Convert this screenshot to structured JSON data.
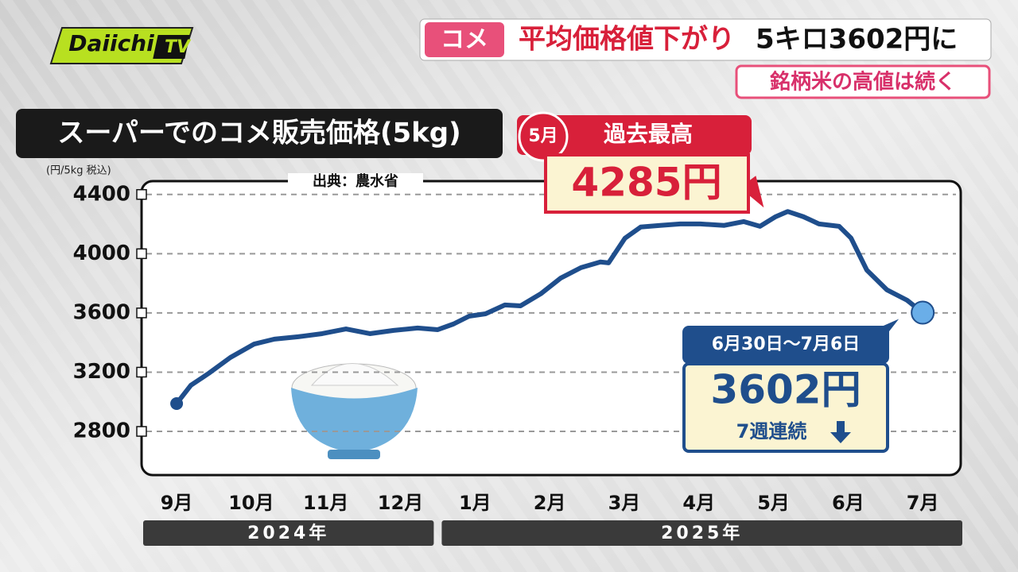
{
  "logo": {
    "name": "Daiichi",
    "suffix": "TV"
  },
  "headline": {
    "tag": "コメ",
    "main": "平均価格値下がり",
    "detail": "5キロ3602円に",
    "sub": "銘柄米の高値は続く"
  },
  "chart_data": {
    "type": "line",
    "title": "スーパーでのコメ販売価格(5kg)",
    "y_unit": "(円/5kg 税込)",
    "source": "出典：農水省",
    "x": [
      0,
      0.19,
      0.43,
      0.72,
      1.04,
      1.31,
      1.63,
      1.95,
      2.27,
      2.59,
      2.91,
      3.23,
      3.5,
      3.71,
      3.92,
      4.14,
      4.4,
      4.61,
      4.88,
      5.15,
      5.42,
      5.68,
      5.79,
      6.01,
      6.22,
      6.48,
      6.75,
      7.02,
      7.34,
      7.6,
      7.82,
      8.03,
      8.19,
      8.4,
      8.61,
      8.88,
      9.04,
      9.25,
      9.52,
      9.79,
      10
    ],
    "series": [
      {
        "name": "コメ販売価格",
        "color": "#1f4e8c",
        "values": [
          2988,
          3111,
          3192,
          3299,
          3390,
          3423,
          3439,
          3460,
          3492,
          3460,
          3482,
          3498,
          3487,
          3525,
          3578,
          3594,
          3654,
          3648,
          3729,
          3836,
          3906,
          3944,
          3938,
          4105,
          4180,
          4191,
          4201,
          4201,
          4191,
          4217,
          4185,
          4250,
          4285,
          4250,
          4201,
          4185,
          4105,
          3890,
          3756,
          3686,
          3602
        ],
        "value_labels": [
          null,
          null,
          null,
          null,
          null,
          null,
          null,
          null,
          null,
          null,
          null,
          null,
          null,
          null,
          null,
          null,
          null,
          null,
          null,
          null,
          null,
          null,
          null,
          null,
          null,
          null,
          null,
          null,
          null,
          null,
          null,
          null,
          "4285円",
          null,
          null,
          null,
          null,
          null,
          null,
          null,
          "3602円"
        ]
      }
    ],
    "xlim": [
      -0.47,
      10.51
    ],
    "xticks": [
      {
        "value": 0,
        "label": "9月"
      },
      {
        "value": 1,
        "label": "10月"
      },
      {
        "value": 2,
        "label": "11月"
      },
      {
        "value": 3,
        "label": "12月"
      },
      {
        "value": 4,
        "label": "1月"
      },
      {
        "value": 5,
        "label": "2月"
      },
      {
        "value": 6,
        "label": "3月"
      },
      {
        "value": 7,
        "label": "4月"
      },
      {
        "value": 8,
        "label": "5月"
      },
      {
        "value": 9,
        "label": "6月"
      },
      {
        "value": 10,
        "label": "7月"
      }
    ],
    "x_groups": [
      "2024年",
      "2025年"
    ],
    "ylim": [
      2505,
      4490
    ],
    "yticks": [
      2800,
      3200,
      3600,
      4000,
      4400
    ],
    "grid": true,
    "peak_callout": {
      "badge": "5月",
      "label": "過去最高"
    },
    "latest_callout": {
      "period": "6月30日～7月6日",
      "note": "7週連続"
    }
  }
}
